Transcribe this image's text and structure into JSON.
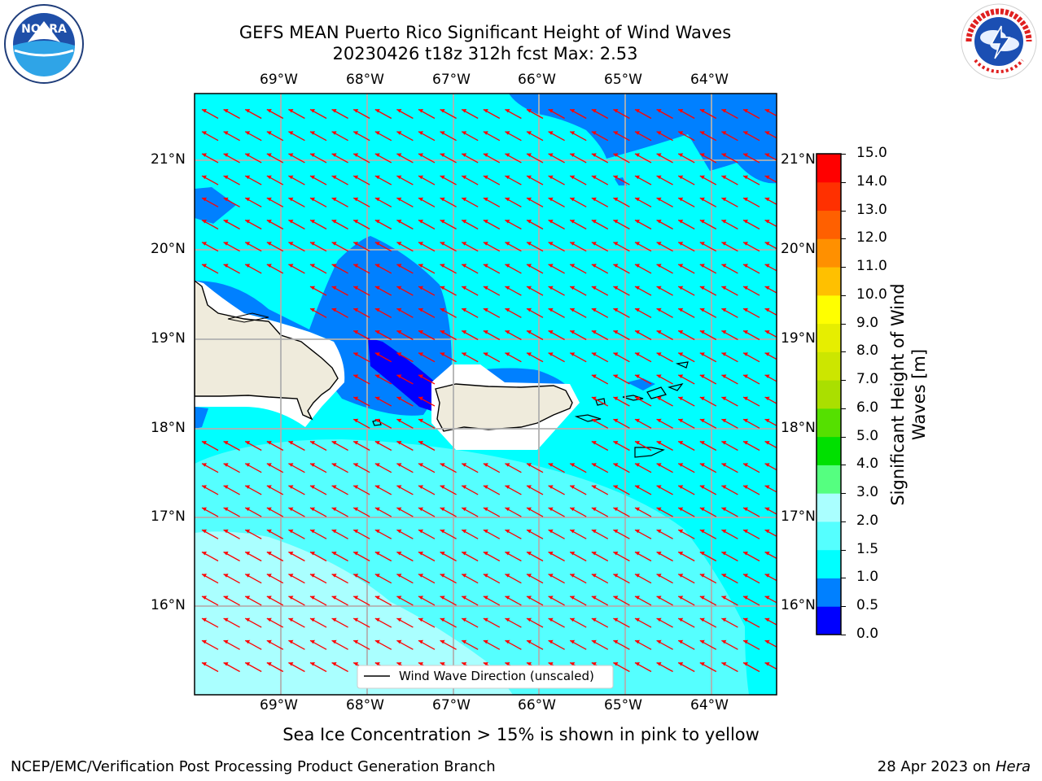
{
  "header": {
    "title_line1": "GEFS MEAN Puerto Rico Significant Height of Wind Waves",
    "title_line2": "20230426 t18z 312h fcst   Max: 2.53"
  },
  "logos": {
    "left": {
      "name": "NOARA",
      "text_ring": "NATIONAL OCEANIC AND ATMOSPHERIC ADMINISTRATION · U.S. DEPARTMENT OF COMMERCE"
    },
    "right": {
      "text_ring": "NATIONAL WEATHER SERVICE"
    }
  },
  "map": {
    "lon_labels": [
      "69°W",
      "68°W",
      "67°W",
      "66°W",
      "65°W",
      "64°W"
    ],
    "lat_labels": [
      "21°N",
      "20°N",
      "19°N",
      "18°N",
      "17°N",
      "16°N"
    ],
    "legend_text": "Wind Wave Direction (unscaled)",
    "colors": {
      "band_0_0p5": "#0000ff",
      "band_0p5_1": "#0080ff",
      "band_1_1p5": "#00ffff",
      "band_1p5_2": "#55ffff",
      "band_2_3": "#aaffff",
      "land": "#efebdc",
      "arrows": "#ff0000",
      "grid": "#b0b0b0"
    }
  },
  "colorbar": {
    "label": "Significant Height of Wind Waves [m]",
    "ticks": [
      "0.0",
      "0.5",
      "1.0",
      "1.5",
      "2.0",
      "3.0",
      "4.0",
      "5.0",
      "6.0",
      "7.0",
      "8.0",
      "9.0",
      "10.0",
      "11.0",
      "12.0",
      "13.0",
      "14.0",
      "15.0"
    ],
    "colors": [
      "#0000ff",
      "#0080ff",
      "#00ffff",
      "#55ffff",
      "#aaffff",
      "#55ff80",
      "#00e000",
      "#55e000",
      "#aadf00",
      "#cce600",
      "#e6ee00",
      "#ffff00",
      "#ffc000",
      "#ff9000",
      "#ff6000",
      "#ff3000",
      "#ff0000"
    ]
  },
  "notes": {
    "sea_ice": "Sea Ice Concentration > 15% is shown in pink to yellow"
  },
  "footer": {
    "left": "NCEP/EMC/Verification Post Processing Product Generation Branch",
    "right_date": "28 Apr 2023 on ",
    "right_host": "Hera"
  }
}
